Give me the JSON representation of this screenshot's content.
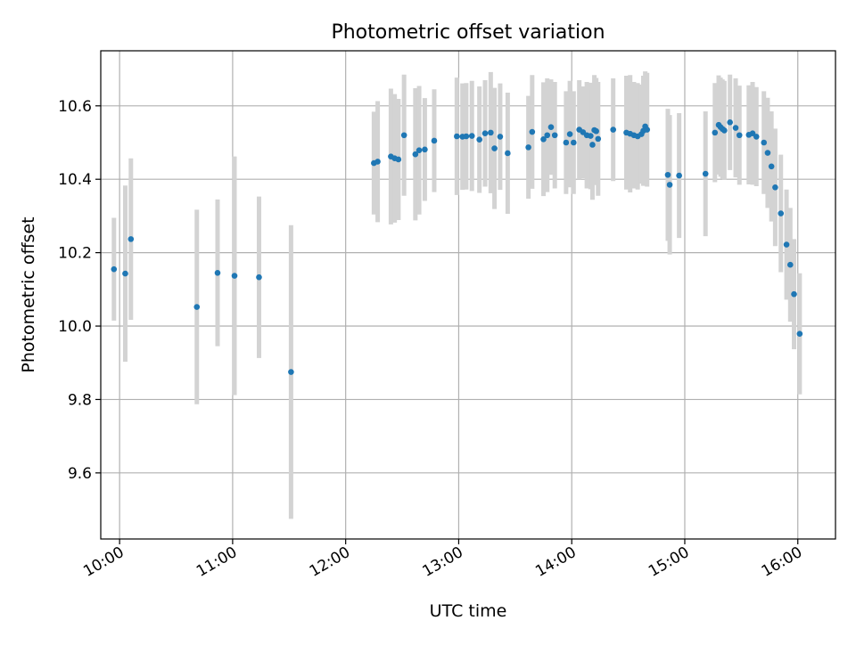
{
  "chart_data": {
    "type": "scatter",
    "title": "Photometric offset variation",
    "xlabel": "UTC time",
    "ylabel": "Photometric offset",
    "x_unit": "hours UTC",
    "xlim": [
      "09:50",
      "16:20"
    ],
    "ylim": [
      9.42,
      10.75
    ],
    "x_ticks": [
      {
        "value": "10:00",
        "label": "10:00"
      },
      {
        "value": "11:00",
        "label": "11:00"
      },
      {
        "value": "12:00",
        "label": "12:00"
      },
      {
        "value": "13:00",
        "label": "13:00"
      },
      {
        "value": "14:00",
        "label": "14:00"
      },
      {
        "value": "15:00",
        "label": "15:00"
      },
      {
        "value": "16:00",
        "label": "16:00"
      }
    ],
    "y_ticks": [
      {
        "value": 9.6,
        "label": "9.6"
      },
      {
        "value": 9.8,
        "label": "9.8"
      },
      {
        "value": 10.0,
        "label": "10.0"
      },
      {
        "value": 10.2,
        "label": "10.2"
      },
      {
        "value": 10.4,
        "label": "10.4"
      },
      {
        "value": 10.6,
        "label": "10.6"
      }
    ],
    "grid": true,
    "marker_color": "#1f77b4",
    "errorbar_color": "#d3d3d3",
    "points": [
      [
        "09:57",
        10.155,
        0.14
      ],
      [
        "10:03",
        10.143,
        0.24
      ],
      [
        "10:06",
        10.237,
        0.22
      ],
      [
        "10:41",
        10.052,
        0.265
      ],
      [
        "10:52",
        10.145,
        0.2
      ],
      [
        "11:01",
        10.137,
        0.325
      ],
      [
        "11:14",
        10.133,
        0.22
      ],
      [
        "11:31",
        9.875,
        0.4
      ],
      [
        "12:15",
        10.444,
        0.14
      ],
      [
        "12:17",
        10.448,
        0.165
      ],
      [
        "12:24",
        10.462,
        0.185
      ],
      [
        "12:26",
        10.457,
        0.175
      ],
      [
        "12:28",
        10.454,
        0.165
      ],
      [
        "12:31",
        10.52,
        0.165
      ],
      [
        "12:37",
        10.468,
        0.18
      ],
      [
        "12:39",
        10.479,
        0.175
      ],
      [
        "12:42",
        10.481,
        0.14
      ],
      [
        "12:47",
        10.505,
        0.14
      ],
      [
        "12:59",
        10.517,
        0.16
      ],
      [
        "13:02",
        10.516,
        0.145
      ],
      [
        "13:04",
        10.517,
        0.145
      ],
      [
        "13:07",
        10.518,
        0.15
      ],
      [
        "13:11",
        10.508,
        0.145
      ],
      [
        "13:14",
        10.525,
        0.145
      ],
      [
        "13:17",
        10.527,
        0.165
      ],
      [
        "13:19",
        10.484,
        0.165
      ],
      [
        "13:22",
        10.516,
        0.145
      ],
      [
        "13:26",
        10.471,
        0.165
      ],
      [
        "13:37",
        10.487,
        0.14
      ],
      [
        "13:39",
        10.529,
        0.155
      ],
      [
        "13:45",
        10.509,
        0.155
      ],
      [
        "13:47",
        10.52,
        0.155
      ],
      [
        "13:49",
        10.542,
        0.13
      ],
      [
        "13:51",
        10.52,
        0.145
      ],
      [
        "13:57",
        10.5,
        0.14
      ],
      [
        "13:59",
        10.523,
        0.145
      ],
      [
        "14:01",
        10.5,
        0.14
      ],
      [
        "14:04",
        10.535,
        0.135
      ],
      [
        "14:06",
        10.528,
        0.125
      ],
      [
        "14:08",
        10.52,
        0.145
      ],
      [
        "14:10",
        10.518,
        0.145
      ],
      [
        "14:11",
        10.494,
        0.15
      ],
      [
        "14:12",
        10.534,
        0.15
      ],
      [
        "14:13",
        10.531,
        0.145
      ],
      [
        "14:14",
        10.51,
        0.155
      ],
      [
        "14:22",
        10.535,
        0.14
      ],
      [
        "14:29",
        10.527,
        0.155
      ],
      [
        "14:31",
        10.524,
        0.16
      ],
      [
        "14:33",
        10.52,
        0.145
      ],
      [
        "14:35",
        10.517,
        0.145
      ],
      [
        "14:37",
        10.523,
        0.135
      ],
      [
        "14:38",
        10.532,
        0.15
      ],
      [
        "14:39",
        10.544,
        0.15
      ],
      [
        "14:40",
        10.535,
        0.155
      ],
      [
        "14:51",
        10.412,
        0.18
      ],
      [
        "14:52",
        10.385,
        0.19
      ],
      [
        "14:57",
        10.41,
        0.17
      ],
      [
        "15:11",
        10.415,
        0.17
      ],
      [
        "15:16",
        10.527,
        0.135
      ],
      [
        "15:18",
        10.548,
        0.135
      ],
      [
        "15:19",
        10.542,
        0.135
      ],
      [
        "15:20",
        10.537,
        0.135
      ],
      [
        "15:21",
        10.533,
        0.135
      ],
      [
        "15:24",
        10.555,
        0.13
      ],
      [
        "15:27",
        10.54,
        0.135
      ],
      [
        "15:29",
        10.52,
        0.135
      ],
      [
        "15:34",
        10.521,
        0.135
      ],
      [
        "15:36",
        10.525,
        0.14
      ],
      [
        "15:38",
        10.516,
        0.135
      ],
      [
        "15:42",
        10.5,
        0.14
      ],
      [
        "15:44",
        10.472,
        0.15
      ],
      [
        "15:46",
        10.435,
        0.15
      ],
      [
        "15:48",
        10.378,
        0.16
      ],
      [
        "15:51",
        10.307,
        0.16
      ],
      [
        "15:54",
        10.222,
        0.15
      ],
      [
        "15:56",
        10.167,
        0.155
      ],
      [
        "15:58",
        10.087,
        0.15
      ],
      [
        "16:01",
        9.979,
        0.165
      ]
    ]
  }
}
